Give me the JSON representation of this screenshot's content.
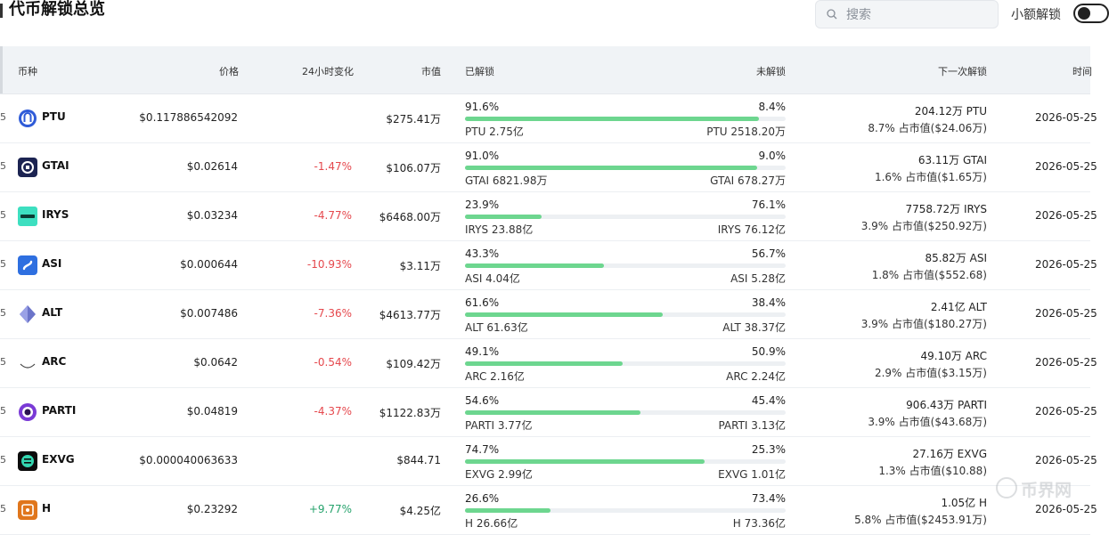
{
  "header": {
    "title": "代币解锁总览",
    "search_placeholder": "搜索",
    "toggle_label": "小额解锁"
  },
  "columns": [
    "币种",
    "价格",
    "24小时变化",
    "市值",
    "已解锁",
    "未解锁",
    "下一次解锁",
    "时间"
  ],
  "rows": [
    {
      "stub": "5",
      "symbol": "PTU",
      "price": "$0.117886542092",
      "change": "",
      "change_dir": "none",
      "mcap": "$275.41万",
      "unlocked_pct": "91.6%",
      "unlocked_fraction": 0.916,
      "locked_pct": "8.4%",
      "unlocked_amt": "PTU 2.75亿",
      "locked_amt": "PTU 2518.20万",
      "next_amt": "204.12万 PTU",
      "next_share": "8.7% 占市值($24.06万)",
      "time": "2026-05-25",
      "icon": "ptu-logo",
      "icon_color": "#2f5bd8"
    },
    {
      "stub": "5",
      "symbol": "GTAI",
      "price": "$0.02614",
      "change": "-1.47%",
      "change_dir": "neg",
      "mcap": "$106.07万",
      "unlocked_pct": "91.0%",
      "unlocked_fraction": 0.91,
      "locked_pct": "9.0%",
      "unlocked_amt": "GTAI 6821.98万",
      "locked_amt": "GTAI 678.27万",
      "next_amt": "63.11万 GTAI",
      "next_share": "1.6% 占市值($1.65万)",
      "time": "2026-05-25",
      "icon": "gtai-logo",
      "icon_color": "#1c2452"
    },
    {
      "stub": "5",
      "symbol": "IRYS",
      "price": "$0.03234",
      "change": "-4.77%",
      "change_dir": "neg",
      "mcap": "$6468.00万",
      "unlocked_pct": "23.9%",
      "unlocked_fraction": 0.239,
      "locked_pct": "76.1%",
      "unlocked_amt": "IRYS 23.88亿",
      "locked_amt": "IRYS 76.12亿",
      "next_amt": "7758.72万 IRYS",
      "next_share": "3.9% 占市值($250.92万)",
      "time": "2026-05-25",
      "icon": "irys-logo",
      "icon_color": "#3ddfc0"
    },
    {
      "stub": "5",
      "symbol": "ASI",
      "price": "$0.000644",
      "change": "-10.93%",
      "change_dir": "neg",
      "mcap": "$3.11万",
      "unlocked_pct": "43.3%",
      "unlocked_fraction": 0.433,
      "locked_pct": "56.7%",
      "unlocked_amt": "ASI 4.04亿",
      "locked_amt": "ASI 5.28亿",
      "next_amt": "85.82万 ASI",
      "next_share": "1.8% 占市值($552.68)",
      "time": "2026-05-25",
      "icon": "asi-logo",
      "icon_color": "#2e6fe0"
    },
    {
      "stub": "5",
      "symbol": "ALT",
      "price": "$0.007486",
      "change": "-7.36%",
      "change_dir": "neg",
      "mcap": "$4613.77万",
      "unlocked_pct": "61.6%",
      "unlocked_fraction": 0.616,
      "locked_pct": "38.4%",
      "unlocked_amt": "ALT 61.63亿",
      "locked_amt": "ALT 38.37亿",
      "next_amt": "2.41亿 ALT",
      "next_share": "3.9% 占市值($180.27万)",
      "time": "2026-05-25",
      "icon": "alt-logo",
      "icon_color": "#6b74c9"
    },
    {
      "stub": "5",
      "symbol": "ARC",
      "price": "$0.0642",
      "change": "-0.54%",
      "change_dir": "neg",
      "mcap": "$109.42万",
      "unlocked_pct": "49.1%",
      "unlocked_fraction": 0.491,
      "locked_pct": "50.9%",
      "unlocked_amt": "ARC 2.16亿",
      "locked_amt": "ARC 2.24亿",
      "next_amt": "49.10万 ARC",
      "next_share": "2.9% 占市值($3.15万)",
      "time": "2026-05-25",
      "icon": "arc-logo",
      "icon_color": "#444444"
    },
    {
      "stub": "5",
      "symbol": "PARTI",
      "price": "$0.04819",
      "change": "-4.37%",
      "change_dir": "neg",
      "mcap": "$1122.83万",
      "unlocked_pct": "54.6%",
      "unlocked_fraction": 0.546,
      "locked_pct": "45.4%",
      "unlocked_amt": "PARTI 3.77亿",
      "locked_amt": "PARTI 3.13亿",
      "next_amt": "906.43万 PARTI",
      "next_share": "3.9% 占市值($43.68万)",
      "time": "2026-05-25",
      "icon": "parti-logo",
      "icon_color": "#7a3ad6"
    },
    {
      "stub": "5",
      "symbol": "EXVG",
      "price": "$0.000040063633",
      "change": "",
      "change_dir": "none",
      "mcap": "$844.71",
      "unlocked_pct": "74.7%",
      "unlocked_fraction": 0.747,
      "locked_pct": "25.3%",
      "unlocked_amt": "EXVG 2.99亿",
      "locked_amt": "EXVG 1.01亿",
      "next_amt": "27.16万 EXVG",
      "next_share": "1.3% 占市值($10.88)",
      "time": "2026-05-25",
      "icon": "exvg-logo",
      "icon_color": "#0f3b35"
    },
    {
      "stub": "5",
      "symbol": "H",
      "price": "$0.23292",
      "change": "+9.77%",
      "change_dir": "pos",
      "mcap": "$4.25亿",
      "unlocked_pct": "26.6%",
      "unlocked_fraction": 0.266,
      "locked_pct": "73.4%",
      "unlocked_amt": "H 26.66亿",
      "locked_amt": "H 73.36亿",
      "next_amt": "1.05亿 H",
      "next_share": "5.8% 占市值($2453.91万)",
      "time": "2026-05-25",
      "icon": "h-logo",
      "icon_color": "#e0761c"
    }
  ],
  "watermark": "币界网"
}
